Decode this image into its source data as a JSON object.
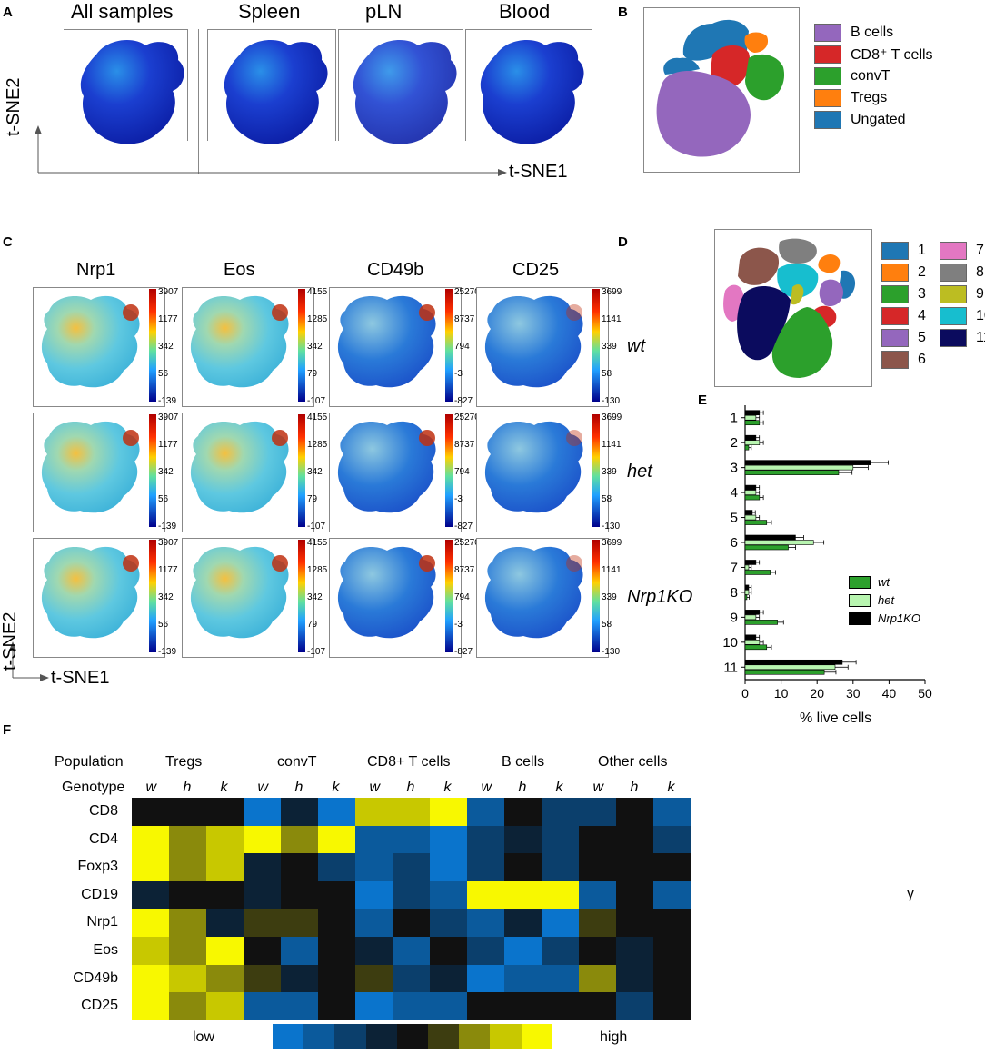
{
  "panels": {
    "A": {
      "label": "A",
      "titles": [
        "All samples",
        "Spleen",
        "pLN",
        "Blood"
      ],
      "x_axis": "t-SNE1",
      "y_axis": "t-SNE2"
    },
    "B": {
      "label": "B",
      "legend": [
        {
          "name": "B cells",
          "color": "#9467bd"
        },
        {
          "name": "CD8⁺ T cells",
          "color": "#d62728"
        },
        {
          "name": "convT",
          "color": "#2ca02c"
        },
        {
          "name": "Tregs",
          "color": "#ff7f0e"
        },
        {
          "name": "Ungated",
          "color": "#1f77b4"
        }
      ]
    },
    "C": {
      "label": "C",
      "markers": [
        "Nrp1",
        "Eos",
        "CD49b",
        "CD25"
      ],
      "genotypes": [
        "wt",
        "het",
        "Nrp1KO"
      ],
      "scales": [
        [
          "3907",
          "1177",
          "342",
          "56",
          "-139"
        ],
        [
          "4155",
          "1285",
          "342",
          "79",
          "-107"
        ],
        [
          "25270",
          "8737",
          "794",
          "-3",
          "-827"
        ],
        [
          "3699",
          "1141",
          "339",
          "58",
          "-130"
        ]
      ],
      "x_axis": "t-SNE1",
      "y_axis": "t-SNE2"
    },
    "D": {
      "label": "D",
      "legend": [
        {
          "name": "1",
          "color": "#1f77b4"
        },
        {
          "name": "2",
          "color": "#ff7f0e"
        },
        {
          "name": "3",
          "color": "#2ca02c"
        },
        {
          "name": "4",
          "color": "#d62728"
        },
        {
          "name": "5",
          "color": "#9467bd"
        },
        {
          "name": "6",
          "color": "#8c564b"
        },
        {
          "name": "7",
          "color": "#e377c2"
        },
        {
          "name": "8",
          "color": "#7f7f7f"
        },
        {
          "name": "9",
          "color": "#bcbd22"
        },
        {
          "name": "10",
          "color": "#17becf"
        },
        {
          "name": "11",
          "color": "#0b0b5e"
        }
      ]
    },
    "E": {
      "label": "E"
    },
    "F": {
      "label": "F",
      "row_header_population": "Population",
      "row_header_genotype": "Genotype",
      "populations": [
        "Tregs",
        "convT",
        "CD8+ T cells",
        "B cells",
        "Other cells"
      ],
      "genotype_letters": [
        "w",
        "h",
        "k"
      ],
      "markers": [
        "CD8",
        "CD4",
        "Foxp3",
        "CD19",
        "Nrp1",
        "Eos",
        "CD49b",
        "CD25"
      ],
      "scale_low": "low",
      "scale_high": "high",
      "scale_colors": [
        "#0a74cc",
        "#0b5a9c",
        "#0b3f6c",
        "#0c2236",
        "#111111",
        "#3d3d10",
        "#8a8a0c",
        "#c8c800",
        "#f8f800"
      ],
      "levels": [
        [
          4,
          4,
          4,
          0,
          3,
          0,
          7,
          7,
          8,
          1,
          4,
          2,
          2,
          4,
          1
        ],
        [
          8,
          6,
          7,
          8,
          6,
          8,
          1,
          1,
          0,
          2,
          3,
          2,
          4,
          4,
          2
        ],
        [
          8,
          6,
          7,
          3,
          4,
          2,
          1,
          2,
          0,
          2,
          4,
          2,
          4,
          4,
          4
        ],
        [
          3,
          4,
          4,
          3,
          4,
          4,
          0,
          2,
          1,
          8,
          8,
          8,
          1,
          4,
          1
        ],
        [
          8,
          6,
          3,
          5,
          5,
          4,
          1,
          4,
          2,
          1,
          3,
          0,
          5,
          4,
          4
        ],
        [
          7,
          6,
          8,
          4,
          1,
          4,
          3,
          1,
          4,
          2,
          0,
          2,
          4,
          3,
          4
        ],
        [
          8,
          7,
          6,
          5,
          3,
          4,
          5,
          2,
          3,
          0,
          1,
          1,
          6,
          3,
          4
        ],
        [
          8,
          6,
          7,
          1,
          1,
          4,
          0,
          1,
          1,
          4,
          4,
          4,
          4,
          2,
          4
        ]
      ],
      "gamma": "γ"
    }
  },
  "chart_data": {
    "type": "bar",
    "orientation": "horizontal",
    "categories": [
      "1",
      "2",
      "3",
      "4",
      "5",
      "6",
      "7",
      "8",
      "9",
      "10",
      "11"
    ],
    "series": [
      {
        "name": "wt",
        "color": "#2ca02c",
        "values": [
          4,
          1,
          26,
          4,
          6,
          12,
          7,
          0.5,
          9,
          6,
          22
        ]
      },
      {
        "name": "het",
        "color": "#b8f5b0",
        "values": [
          3,
          4,
          30,
          3,
          3,
          19,
          1,
          1,
          3,
          4,
          25
        ]
      },
      {
        "name": "Nrp1KO",
        "color": "#000000",
        "values": [
          4,
          3,
          35,
          3,
          2,
          14,
          3,
          1,
          4,
          3,
          27
        ]
      }
    ],
    "xlabel": "% live cells",
    "xlim": [
      0,
      50
    ],
    "xticks": [
      "0",
      "10",
      "20",
      "30",
      "40",
      "50"
    ]
  }
}
